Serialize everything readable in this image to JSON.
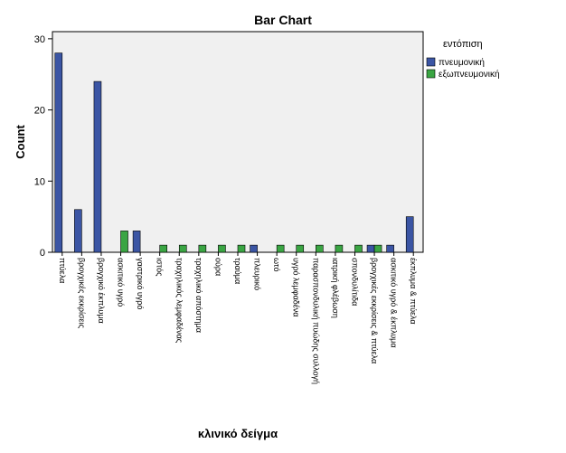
{
  "chart_data": {
    "type": "bar",
    "title": "Bar Chart",
    "xlabel": "κλινικό δείγμα",
    "ylabel": "Count",
    "ylim": [
      0,
      31
    ],
    "yticks": [
      0,
      10,
      20,
      30
    ],
    "grid": false,
    "legend": {
      "title": "εντόπιση",
      "position": "right"
    },
    "categories": [
      "πτύελα",
      "βρογχικές εκκρίσεις",
      "βρογχικό έκπλυμα",
      "ασκιτικό υγρό",
      "γαστρικό υγρό",
      "ιστός",
      "τραχηλικός λεμφαδένας",
      "τραχηλικό απόστημα",
      "ούρα",
      "τραύμα",
      "πλευρικό",
      "ωτό",
      "υγρό λεμφαδένα",
      "παρασπονδυλική πυώδης συλλογή",
      "ιατρική φλέβωση",
      "σπονδυλίτιδα",
      "βρογχικές εκκρίσεις & πτύελα",
      "ασκιτικό υγρό & έκπλυμα",
      "έκπλυμα & πτύελα"
    ],
    "series": [
      {
        "name": "πνευμονική",
        "color": "#3b55a4",
        "values": [
          28,
          6,
          24,
          0,
          3,
          0,
          0,
          0,
          0,
          0,
          1,
          0,
          0,
          0,
          0,
          0,
          1,
          1,
          5
        ]
      },
      {
        "name": "εξωπνευμονική",
        "color": "#3aa543",
        "values": [
          0,
          0,
          0,
          3,
          0,
          1,
          1,
          1,
          1,
          1,
          0,
          1,
          1,
          1,
          1,
          1,
          1,
          0,
          0
        ]
      }
    ]
  },
  "colors": {
    "plot_background": "#f0f0f0",
    "axis": "#000000"
  }
}
